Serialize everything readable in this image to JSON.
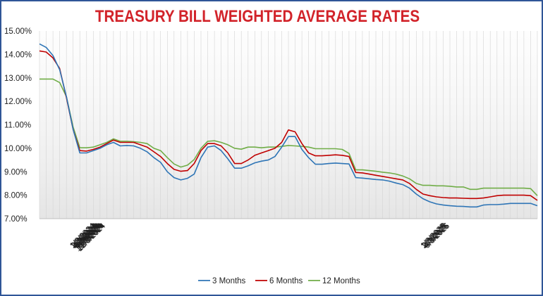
{
  "chart_data": {
    "type": "line",
    "title": "TREASURY BILL WEIGHTED AVERAGE RATES",
    "xlabel": "",
    "ylabel": "",
    "ylim": [
      7.0,
      15.0
    ],
    "y_ticks": [
      "7.00%",
      "8.00%",
      "9.00%",
      "10.00%",
      "11.00%",
      "12.00%",
      "13.00%",
      "14.00%",
      "15.00%"
    ],
    "x_ticks": [
      "1/3/2024",
      "2/3/2024",
      "3/3/2024",
      "4/3/2024",
      "5/3/2024",
      "6/3/2024",
      "7/3/2024",
      "8/3/2024",
      "9/3/2024",
      "10/3/2024",
      "11/3/2024",
      "12/3/2024",
      "1/3/2025",
      "2/3/2025",
      "3/3/2025",
      "4/3/2025",
      "5/3/2025"
    ],
    "grid": "vertical",
    "legend_position": "bottom",
    "x": [
      "2024-01-03",
      "2024-01-10",
      "2024-01-17",
      "2024-01-24",
      "2024-01-31",
      "2024-02-07",
      "2024-02-14",
      "2024-02-21",
      "2024-02-28",
      "2024-03-06",
      "2024-03-13",
      "2024-03-20",
      "2024-03-27",
      "2024-04-03",
      "2024-04-10",
      "2024-04-17",
      "2024-04-24",
      "2024-05-01",
      "2024-05-08",
      "2024-05-15",
      "2024-05-22",
      "2024-05-29",
      "2024-06-05",
      "2024-06-12",
      "2024-06-19",
      "2024-06-26",
      "2024-07-03",
      "2024-07-10",
      "2024-07-17",
      "2024-07-24",
      "2024-07-31",
      "2024-08-07",
      "2024-08-14",
      "2024-08-21",
      "2024-08-28",
      "2024-09-04",
      "2024-09-11",
      "2024-09-18",
      "2024-09-25",
      "2024-10-02",
      "2024-10-09",
      "2024-10-16",
      "2024-10-23",
      "2024-10-30",
      "2024-11-06",
      "2024-11-13",
      "2024-11-20",
      "2024-11-27",
      "2024-12-04",
      "2024-12-11",
      "2024-12-18",
      "2024-12-25",
      "2025-01-01",
      "2025-01-08",
      "2025-01-15",
      "2025-01-22",
      "2025-01-29",
      "2025-02-05",
      "2025-02-12",
      "2025-02-19",
      "2025-02-26",
      "2025-03-05",
      "2025-03-12",
      "2025-03-19",
      "2025-03-26",
      "2025-04-02",
      "2025-04-09",
      "2025-04-16",
      "2025-04-23",
      "2025-04-30",
      "2025-05-07",
      "2025-05-14",
      "2025-05-21",
      "2025-05-28",
      "2025-06-04"
    ],
    "series": [
      {
        "name": "3 Months",
        "color": "#2e75b6",
        "values": [
          14.45,
          14.3,
          13.95,
          13.35,
          12.2,
          10.8,
          9.8,
          9.8,
          9.9,
          10.0,
          10.15,
          10.25,
          10.1,
          10.12,
          10.1,
          10.0,
          9.85,
          9.6,
          9.4,
          9.0,
          8.75,
          8.65,
          8.72,
          8.9,
          9.6,
          10.05,
          10.1,
          9.9,
          9.55,
          9.15,
          9.15,
          9.25,
          9.38,
          9.45,
          9.5,
          9.65,
          10.05,
          10.5,
          10.5,
          9.95,
          9.6,
          9.32,
          9.32,
          9.35,
          9.37,
          9.35,
          9.33,
          8.75,
          8.73,
          8.7,
          8.67,
          8.65,
          8.6,
          8.52,
          8.45,
          8.3,
          8.05,
          7.85,
          7.72,
          7.63,
          7.58,
          7.55,
          7.53,
          7.52,
          7.5,
          7.5,
          7.58,
          7.6,
          7.6,
          7.62,
          7.65,
          7.65,
          7.65,
          7.65,
          7.55
        ]
      },
      {
        "name": "6 Months",
        "color": "#c00000",
        "values": [
          14.15,
          14.1,
          13.85,
          13.4,
          12.15,
          10.8,
          9.9,
          9.88,
          9.95,
          10.05,
          10.2,
          10.35,
          10.25,
          10.25,
          10.25,
          10.15,
          10.05,
          9.85,
          9.65,
          9.35,
          9.1,
          9.02,
          9.05,
          9.35,
          9.9,
          10.2,
          10.2,
          10.1,
          9.8,
          9.35,
          9.35,
          9.5,
          9.7,
          9.8,
          9.9,
          10.0,
          10.25,
          10.78,
          10.7,
          10.2,
          9.8,
          9.68,
          9.68,
          9.7,
          9.72,
          9.7,
          9.65,
          8.97,
          8.95,
          8.9,
          8.85,
          8.8,
          8.75,
          8.7,
          8.65,
          8.5,
          8.25,
          8.05,
          7.98,
          7.93,
          7.9,
          7.88,
          7.88,
          7.87,
          7.86,
          7.86,
          7.88,
          7.93,
          7.98,
          8.0,
          8.0,
          8.0,
          8.0,
          7.98,
          7.78
        ]
      },
      {
        "name": "12 Months",
        "color": "#70ad47",
        "values": [
          12.95,
          12.95,
          12.95,
          12.8,
          12.2,
          10.9,
          10.02,
          10.02,
          10.05,
          10.15,
          10.25,
          10.4,
          10.3,
          10.3,
          10.28,
          10.25,
          10.2,
          10.0,
          9.9,
          9.6,
          9.33,
          9.2,
          9.28,
          9.52,
          10.0,
          10.3,
          10.32,
          10.25,
          10.15,
          10.0,
          9.96,
          10.05,
          10.05,
          10.02,
          10.05,
          10.05,
          10.08,
          10.12,
          10.1,
          10.08,
          10.05,
          9.98,
          9.98,
          9.98,
          9.98,
          9.95,
          9.78,
          9.08,
          9.08,
          9.05,
          9.02,
          8.98,
          8.95,
          8.9,
          8.82,
          8.7,
          8.5,
          8.42,
          8.42,
          8.4,
          8.4,
          8.38,
          8.35,
          8.35,
          8.25,
          8.25,
          8.3,
          8.3,
          8.3,
          8.3,
          8.3,
          8.3,
          8.3,
          8.28,
          7.98
        ]
      }
    ]
  }
}
